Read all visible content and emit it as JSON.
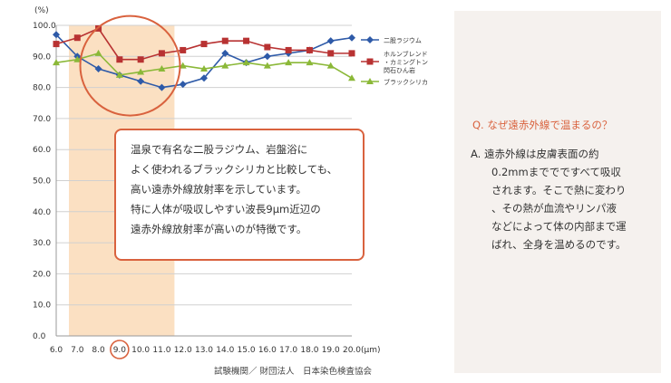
{
  "chart_data": {
    "type": "line",
    "unit_top": "(%)",
    "x_unit": "(μm)",
    "x": [
      6.0,
      7.0,
      8.0,
      9.0,
      10.0,
      11.0,
      12.0,
      13.0,
      14.0,
      15.0,
      16.0,
      17.0,
      18.0,
      19.0,
      20.0
    ],
    "x_tick_labels": [
      "6.0",
      "7.0",
      "8.0",
      "9.0",
      "10.0",
      "11.0",
      "12.0",
      "13.0",
      "14.0",
      "15.0",
      "16.0",
      "17.0",
      "18.0",
      "19.0",
      "20.0"
    ],
    "y_ticks": [
      0,
      10,
      20,
      30,
      40,
      50,
      60,
      70,
      80,
      90,
      100
    ],
    "y_tick_labels": [
      "0.0",
      "10.0",
      "20.0",
      "30.0",
      "40.0",
      "50.0",
      "60.0",
      "70.0",
      "80.0",
      "90.0",
      "100.0"
    ],
    "ylim": [
      0,
      100
    ],
    "xlim": [
      6,
      20
    ],
    "grid": true,
    "legend_position": "right",
    "highlight_range": [
      6.6,
      11.6
    ],
    "highlight_color": "#fbe0c2",
    "highlight_circle_center": [
      9.5,
      87
    ],
    "highlight_x": 9.0,
    "series": [
      {
        "name": "二股ラジウム",
        "color": "#2e5aa8",
        "marker": "diamond",
        "values": [
          97,
          90,
          86,
          84,
          82,
          80,
          81,
          83,
          91,
          88,
          90,
          91,
          92,
          95,
          96
        ]
      },
      {
        "name": "ホルンブレンド・カミングトン閃石ひん岩",
        "legend_lines": [
          "ホルンブレンド",
          "・カミングトン",
          "閃石ひん岩"
        ],
        "color": "#b83232",
        "marker": "square",
        "values": [
          94,
          96,
          99,
          89,
          89,
          91,
          92,
          94,
          95,
          95,
          93,
          92,
          92,
          91,
          91
        ]
      },
      {
        "name": "ブラックシリカ",
        "color": "#8bb838",
        "marker": "triangle",
        "values": [
          88,
          89,
          91,
          84,
          85,
          86,
          87,
          86,
          87,
          88,
          87,
          88,
          88,
          87,
          83
        ]
      }
    ]
  },
  "callout": {
    "lines": [
      "温泉で有名な二股ラジウム、岩盤浴に",
      "よく使われるブラックシリカと比較しても、",
      "高い遠赤外線放射率を示しています。",
      "特に人体が吸収しやすい波長9μm近辺の",
      "遠赤外線放射率が高いのが特徴です。"
    ]
  },
  "source": "試験機関／ 財団法人　日本染色検査協会",
  "qa": {
    "question": "Q. なぜ遠赤外線で温まるの？",
    "answer_lines": [
      "A. 遠赤外線は皮膚表面の約",
      "　　0.2mmまででですべて吸収",
      "　　されます。そこで熱に変わり",
      "　　、その熱が血流やリンパ液",
      "　　などによって体の内部まで運",
      "　　ばれ、全身を温めるのです。"
    ]
  },
  "colors": {
    "accent": "#d9623e",
    "panel_bg": "#f5f1ee"
  }
}
